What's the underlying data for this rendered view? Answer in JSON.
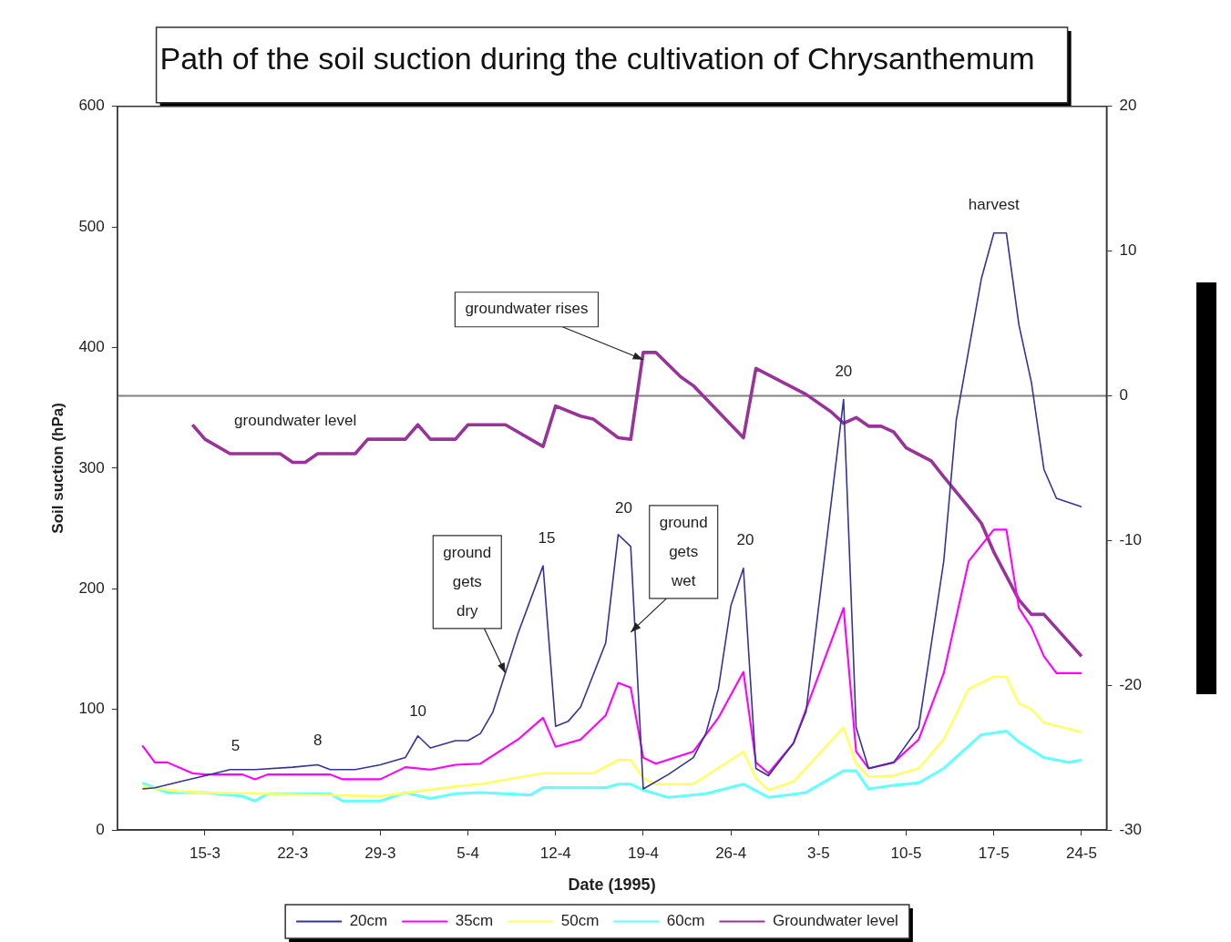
{
  "chart_data": {
    "type": "line",
    "title": "Path of the soil suction during the cultivation of Chrysanthemum",
    "xlabel": "Date (1995)",
    "ylabel": "Soil suction (hPa)",
    "xlim": [
      "1995-03-08",
      "1995-05-26"
    ],
    "xticks": [
      {
        "value": "1995-03-15",
        "label": "15-3"
      },
      {
        "value": "1995-03-22",
        "label": "22-3"
      },
      {
        "value": "1995-03-29",
        "label": "29-3"
      },
      {
        "value": "1995-04-05",
        "label": "5-4"
      },
      {
        "value": "1995-04-12",
        "label": "12-4"
      },
      {
        "value": "1995-04-19",
        "label": "19-4"
      },
      {
        "value": "1995-04-26",
        "label": "26-4"
      },
      {
        "value": "1995-05-03",
        "label": "3-5"
      },
      {
        "value": "1995-05-10",
        "label": "10-5"
      },
      {
        "value": "1995-05-17",
        "label": "17-5"
      },
      {
        "value": "1995-05-24",
        "label": "24-5"
      }
    ],
    "ylim": [
      0,
      600
    ],
    "yticks": [
      0,
      100,
      200,
      300,
      400,
      500,
      600
    ],
    "y2lim": [
      -30,
      20
    ],
    "y2ticks": [
      -30,
      -20,
      -10,
      0,
      10,
      20
    ],
    "marker": "none",
    "legend": "bottom",
    "series": [
      {
        "name": "20cm",
        "color": "#333399",
        "x": [
          "1995-03-10",
          "1995-03-11",
          "1995-03-13",
          "1995-03-15",
          "1995-03-17",
          "1995-03-19",
          "1995-03-22",
          "1995-03-24",
          "1995-03-25",
          "1995-03-27",
          "1995-03-29",
          "1995-03-31",
          "1995-04-01",
          "1995-04-02",
          "1995-04-04",
          "1995-04-05",
          "1995-04-06",
          "1995-04-07",
          "1995-04-09",
          "1995-04-11",
          "1995-04-12",
          "1995-04-13",
          "1995-04-14",
          "1995-04-16",
          "1995-04-17",
          "1995-04-18",
          "1995-04-19",
          "1995-04-21",
          "1995-04-23",
          "1995-04-24",
          "1995-04-25",
          "1995-04-26",
          "1995-04-27",
          "1995-04-28",
          "1995-04-29",
          "1995-05-01",
          "1995-05-02",
          "1995-05-05",
          "1995-05-06",
          "1995-05-07",
          "1995-05-09",
          "1995-05-11",
          "1995-05-13",
          "1995-05-14",
          "1995-05-16",
          "1995-05-17",
          "1995-05-18",
          "1995-05-19",
          "1995-05-20",
          "1995-05-21",
          "1995-05-22",
          "1995-05-24"
        ],
        "values": [
          34,
          35,
          40,
          45,
          50,
          50,
          52,
          54,
          50,
          50,
          54,
          60,
          78,
          68,
          74,
          74,
          80,
          98,
          163,
          219,
          86,
          90,
          102,
          155,
          245,
          235,
          34,
          46,
          60,
          80,
          117,
          186,
          217,
          51,
          45,
          72,
          98,
          357,
          85,
          51,
          56,
          85,
          223,
          340,
          457,
          495,
          495,
          419,
          371,
          299,
          275,
          268
        ]
      },
      {
        "name": "35cm",
        "color": "#ff00ff",
        "x": [
          "1995-03-10",
          "1995-03-11",
          "1995-03-12",
          "1995-03-14",
          "1995-03-15",
          "1995-03-18",
          "1995-03-19",
          "1995-03-20",
          "1995-03-25",
          "1995-03-26",
          "1995-03-29",
          "1995-03-31",
          "1995-04-02",
          "1995-04-04",
          "1995-04-06",
          "1995-04-09",
          "1995-04-11",
          "1995-04-12",
          "1995-04-14",
          "1995-04-16",
          "1995-04-17",
          "1995-04-18",
          "1995-04-19",
          "1995-04-20",
          "1995-04-23",
          "1995-04-25",
          "1995-04-27",
          "1995-04-28",
          "1995-04-29",
          "1995-05-01",
          "1995-05-05",
          "1995-05-06",
          "1995-05-07",
          "1995-05-09",
          "1995-05-11",
          "1995-05-13",
          "1995-05-15",
          "1995-05-17",
          "1995-05-18",
          "1995-05-19",
          "1995-05-20",
          "1995-05-21",
          "1995-05-22",
          "1995-05-24"
        ],
        "values": [
          70,
          56,
          56,
          47,
          46,
          46,
          42,
          46,
          46,
          42,
          42,
          52,
          50,
          54,
          55,
          75,
          93,
          69,
          75,
          95,
          122,
          118,
          60,
          55,
          65,
          93,
          131,
          56,
          47,
          72,
          184,
          65,
          51,
          56,
          75,
          130,
          223,
          249,
          249,
          184,
          168,
          144,
          130,
          130
        ]
      },
      {
        "name": "50cm",
        "color": "#ffff66",
        "x": [
          "1995-03-10",
          "1995-03-13",
          "1995-03-15",
          "1995-03-29",
          "1995-04-01",
          "1995-04-04",
          "1995-04-06",
          "1995-04-11",
          "1995-04-15",
          "1995-04-17",
          "1995-04-18",
          "1995-04-19",
          "1995-04-20",
          "1995-04-23",
          "1995-04-26",
          "1995-04-27",
          "1995-04-28",
          "1995-04-29",
          "1995-05-01",
          "1995-05-05",
          "1995-05-06",
          "1995-05-07",
          "1995-05-09",
          "1995-05-11",
          "1995-05-13",
          "1995-05-15",
          "1995-05-17",
          "1995-05-18",
          "1995-05-19",
          "1995-05-20",
          "1995-05-21",
          "1995-05-24"
        ],
        "values": [
          36,
          32,
          31,
          28,
          32,
          36,
          38,
          47,
          47,
          58,
          58,
          43,
          38,
          38,
          58,
          65,
          43,
          33,
          40,
          85,
          55,
          44,
          45,
          51,
          75,
          117,
          127,
          127,
          105,
          100,
          89,
          81
        ]
      },
      {
        "name": "60cm",
        "color": "#66ffff",
        "x": [
          "1995-03-10",
          "1995-03-12",
          "1995-03-15",
          "1995-03-18",
          "1995-03-19",
          "1995-03-20",
          "1995-03-25",
          "1995-03-26",
          "1995-03-29",
          "1995-03-31",
          "1995-04-02",
          "1995-04-04",
          "1995-04-06",
          "1995-04-10",
          "1995-04-11",
          "1995-04-16",
          "1995-04-17",
          "1995-04-18",
          "1995-04-19",
          "1995-04-21",
          "1995-04-24",
          "1995-04-27",
          "1995-04-29",
          "1995-05-02",
          "1995-05-05",
          "1995-05-06",
          "1995-05-07",
          "1995-05-09",
          "1995-05-11",
          "1995-05-13",
          "1995-05-16",
          "1995-05-18",
          "1995-05-19",
          "1995-05-21",
          "1995-05-23",
          "1995-05-24"
        ],
        "values": [
          39,
          31,
          31,
          28,
          24,
          30,
          30,
          24,
          24,
          31,
          26,
          30,
          31,
          29,
          35,
          35,
          38,
          38,
          33,
          27,
          30,
          38,
          27,
          31,
          49,
          49,
          34,
          37,
          39,
          51,
          79,
          82,
          73,
          60,
          56,
          58
        ]
      },
      {
        "name": "Groundwater level",
        "color": "#993399",
        "axis": "y2",
        "x": [
          "1995-03-14",
          "1995-03-15",
          "1995-03-17",
          "1995-03-21",
          "1995-03-22",
          "1995-03-23",
          "1995-03-24",
          "1995-03-27",
          "1995-03-28",
          "1995-03-31",
          "1995-04-01",
          "1995-04-02",
          "1995-04-04",
          "1995-04-05",
          "1995-04-08",
          "1995-04-11",
          "1995-04-12",
          "1995-04-14",
          "1995-04-15",
          "1995-04-17",
          "1995-04-18",
          "1995-04-19",
          "1995-04-20",
          "1995-04-22",
          "1995-04-23",
          "1995-04-27",
          "1995-04-28",
          "1995-05-02",
          "1995-05-04",
          "1995-05-05",
          "1995-05-06",
          "1995-05-07",
          "1995-05-08",
          "1995-05-09",
          "1995-05-10",
          "1995-05-12",
          "1995-05-13",
          "1995-05-15",
          "1995-05-16",
          "1995-05-17",
          "1995-05-19",
          "1995-05-20",
          "1995-05-21",
          "1995-05-24"
        ],
        "values": [
          -2,
          -3,
          -4,
          -4,
          -4.6,
          -4.6,
          -4,
          -4,
          -3,
          -3,
          -2,
          -3,
          -3,
          -2,
          -2,
          -3.5,
          -0.7,
          -1.4,
          -1.6,
          -2.9,
          -3,
          3,
          3,
          1.3,
          0.7,
          -2.9,
          1.9,
          0.1,
          -1.1,
          -1.9,
          -1.5,
          -2.1,
          -2.1,
          -2.5,
          -3.6,
          -4.5,
          -5.6,
          -7.7,
          -8.8,
          -10.8,
          -14.1,
          -15.1,
          -15.1,
          -18
        ]
      }
    ],
    "ref_lines": [
      {
        "axis": "y2",
        "value": 0,
        "color": "#808080"
      }
    ],
    "annotations": [
      {
        "text": "5",
        "x": "1995-03-17",
        "y": 50
      },
      {
        "text": "8",
        "x": "1995-03-24",
        "y": 54
      },
      {
        "text": "10",
        "x": "1995-04-01",
        "y": 78
      },
      {
        "text": "15",
        "x": "1995-04-11",
        "y": 219
      },
      {
        "text": "20",
        "x": "1995-04-17",
        "y": 245
      },
      {
        "text": "20",
        "x": "1995-04-27",
        "y": 217
      },
      {
        "text": "20",
        "x": "1995-05-05",
        "y": 357
      },
      {
        "text": "harvest",
        "x": "1995-05-17",
        "y": 495
      },
      "groundwater level",
      {
        "text": "groundwater rises",
        "x": "1995-04-19",
        "y": 390
      },
      {
        "text": "ground gets dry",
        "x": "1995-04-08",
        "y": 130
      },
      {
        "text": "ground gets wet",
        "x": "1995-04-18",
        "y": 164
      }
    ]
  }
}
